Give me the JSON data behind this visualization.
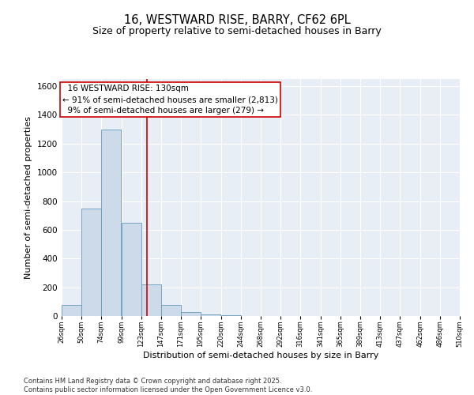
{
  "title1": "16, WESTWARD RISE, BARRY, CF62 6PL",
  "title2": "Size of property relative to semi-detached houses in Barry",
  "xlabel": "Distribution of semi-detached houses by size in Barry",
  "ylabel": "Number of semi-detached properties",
  "footer": "Contains HM Land Registry data © Crown copyright and database right 2025.\nContains public sector information licensed under the Open Government Licence v3.0.",
  "property_size": 130,
  "property_label": "16 WESTWARD RISE: 130sqm",
  "pct_smaller": 91,
  "count_smaller": 2813,
  "pct_larger": 9,
  "count_larger": 279,
  "bin_starts": [
    26,
    50,
    74,
    99,
    123,
    147,
    171,
    195,
    220,
    244,
    268,
    292,
    316,
    341,
    365,
    389,
    413,
    437,
    462,
    486
  ],
  "bin_labels": [
    "26sqm",
    "50sqm",
    "74sqm",
    "99sqm",
    "123sqm",
    "147sqm",
    "171sqm",
    "195sqm",
    "220sqm",
    "244sqm",
    "268sqm",
    "292sqm",
    "316sqm",
    "341sqm",
    "365sqm",
    "389sqm",
    "413sqm",
    "437sqm",
    "462sqm",
    "486sqm",
    "510sqm"
  ],
  "values": [
    75,
    750,
    1300,
    650,
    220,
    75,
    30,
    10,
    5,
    2,
    1,
    0,
    0,
    0,
    0,
    0,
    0,
    0,
    0,
    0
  ],
  "bar_color": "#ccdaea",
  "bar_edge_color": "#6699bb",
  "line_color": "#cc0000",
  "box_edge_color": "#cc0000",
  "background_color": "#e8eef5",
  "ylim": [
    0,
    1650
  ],
  "yticks": [
    0,
    200,
    400,
    600,
    800,
    1000,
    1200,
    1400,
    1600
  ],
  "title1_fontsize": 10.5,
  "title2_fontsize": 9,
  "annotation_fontsize": 7.5,
  "footer_fontsize": 6
}
